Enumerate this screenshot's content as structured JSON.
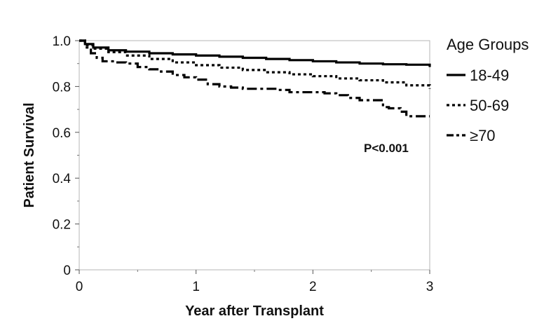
{
  "chart_data": {
    "type": "line",
    "title": "",
    "xlabel": "Year after Transplant",
    "ylabel": "Patient Survival",
    "xlim": [
      0,
      3
    ],
    "ylim": [
      0,
      1.0
    ],
    "x_ticks": [
      "0",
      "1",
      "2",
      "3"
    ],
    "y_ticks": [
      "0",
      "0.2",
      "0.4",
      "0.6",
      "0.8",
      "1.0"
    ],
    "grid": false,
    "legend": {
      "title": "Age Groups",
      "placement": "right"
    },
    "annotation": "P<0.001",
    "series": [
      {
        "name": "18-49",
        "style": "solid",
        "x": [
          0,
          0.05,
          0.12,
          0.25,
          0.4,
          0.6,
          0.8,
          1.0,
          1.2,
          1.4,
          1.6,
          1.8,
          2.0,
          2.2,
          2.4,
          2.6,
          2.8,
          3.0
        ],
        "y": [
          1.0,
          0.985,
          0.97,
          0.958,
          0.952,
          0.945,
          0.94,
          0.935,
          0.93,
          0.925,
          0.92,
          0.915,
          0.91,
          0.905,
          0.9,
          0.897,
          0.895,
          0.885
        ]
      },
      {
        "name": "50-69",
        "style": "dotted",
        "x": [
          0,
          0.05,
          0.12,
          0.25,
          0.4,
          0.6,
          0.8,
          1.0,
          1.2,
          1.4,
          1.6,
          1.8,
          2.0,
          2.2,
          2.4,
          2.6,
          2.8,
          3.0
        ],
        "y": [
          1.0,
          0.98,
          0.965,
          0.95,
          0.935,
          0.92,
          0.905,
          0.893,
          0.882,
          0.872,
          0.862,
          0.853,
          0.845,
          0.835,
          0.827,
          0.818,
          0.805,
          0.79
        ]
      },
      {
        "name": "≥70",
        "style": "dashdot",
        "x": [
          0,
          0.05,
          0.1,
          0.15,
          0.2,
          0.3,
          0.4,
          0.5,
          0.6,
          0.7,
          0.8,
          0.9,
          1.0,
          1.1,
          1.2,
          1.3,
          1.4,
          1.5,
          1.6,
          1.7,
          1.8,
          1.9,
          2.0,
          2.1,
          2.2,
          2.3,
          2.4,
          2.5,
          2.6,
          2.65,
          2.7,
          2.75,
          2.8,
          2.9,
          3.0
        ],
        "y": [
          1.0,
          0.97,
          0.945,
          0.925,
          0.91,
          0.905,
          0.9,
          0.885,
          0.875,
          0.865,
          0.85,
          0.84,
          0.83,
          0.81,
          0.8,
          0.795,
          0.79,
          0.79,
          0.79,
          0.785,
          0.775,
          0.775,
          0.775,
          0.77,
          0.762,
          0.75,
          0.74,
          0.74,
          0.71,
          0.705,
          0.705,
          0.69,
          0.67,
          0.67,
          0.67
        ]
      }
    ]
  }
}
